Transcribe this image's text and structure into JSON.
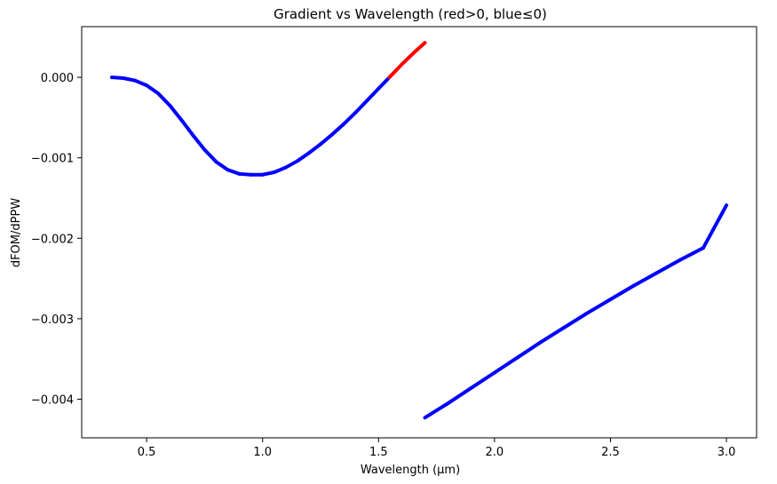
{
  "chart_data": {
    "type": "line",
    "title": "Gradient vs Wavelength (red>0, blue≤0)",
    "xlabel": "Wavelength (μm)",
    "ylabel": "dFOM/dPPW",
    "xlim": [
      0.22,
      3.13
    ],
    "ylim": [
      -0.00448,
      0.00063
    ],
    "xticks": [
      {
        "value": 0.5,
        "label": "0.5"
      },
      {
        "value": 1.0,
        "label": "1.0"
      },
      {
        "value": 1.5,
        "label": "1.5"
      },
      {
        "value": 2.0,
        "label": "2.0"
      },
      {
        "value": 2.5,
        "label": "2.5"
      },
      {
        "value": 3.0,
        "label": "3.0"
      }
    ],
    "yticks": [
      {
        "value": 0.0,
        "label": "0.000"
      },
      {
        "value": -0.001,
        "label": "−0.001"
      },
      {
        "value": -0.002,
        "label": "−0.002"
      },
      {
        "value": -0.003,
        "label": "−0.003"
      },
      {
        "value": -0.004,
        "label": "−0.004"
      }
    ],
    "grid": false,
    "colors": {
      "positive": "#ff0000",
      "non_positive": "#0000ff"
    },
    "series": [
      {
        "x": [
          0.35,
          0.4,
          0.45,
          0.5,
          0.55,
          0.6,
          0.65,
          0.7,
          0.75,
          0.8,
          0.85,
          0.9,
          0.95,
          1.0,
          1.05,
          1.1,
          1.15,
          1.2,
          1.25,
          1.3,
          1.35,
          1.4,
          1.45,
          1.5,
          1.55,
          1.6,
          1.65,
          1.7
        ],
        "y": [
          0.0,
          -1e-05,
          -4e-05,
          -0.0001,
          -0.0002,
          -0.00035,
          -0.00053,
          -0.00072,
          -0.0009,
          -0.00105,
          -0.00115,
          -0.0012,
          -0.00121,
          -0.00121,
          -0.00118,
          -0.00112,
          -0.00104,
          -0.00094,
          -0.00083,
          -0.00071,
          -0.00058,
          -0.00044,
          -0.00029,
          -0.00014,
          1e-05,
          0.00016,
          0.0003,
          0.00043
        ]
      },
      {
        "x": [
          1.7,
          1.8,
          1.9,
          2.0,
          2.1,
          2.2,
          2.3,
          2.4,
          2.5,
          2.6,
          2.7,
          2.8,
          2.9,
          3.0
        ],
        "y": [
          -0.00423,
          -0.00405,
          -0.00386,
          -0.00367,
          -0.00348,
          -0.00329,
          -0.00311,
          -0.00293,
          -0.00276,
          -0.00259,
          -0.00243,
          -0.00227,
          -0.00212,
          -0.00159
        ]
      }
    ]
  }
}
